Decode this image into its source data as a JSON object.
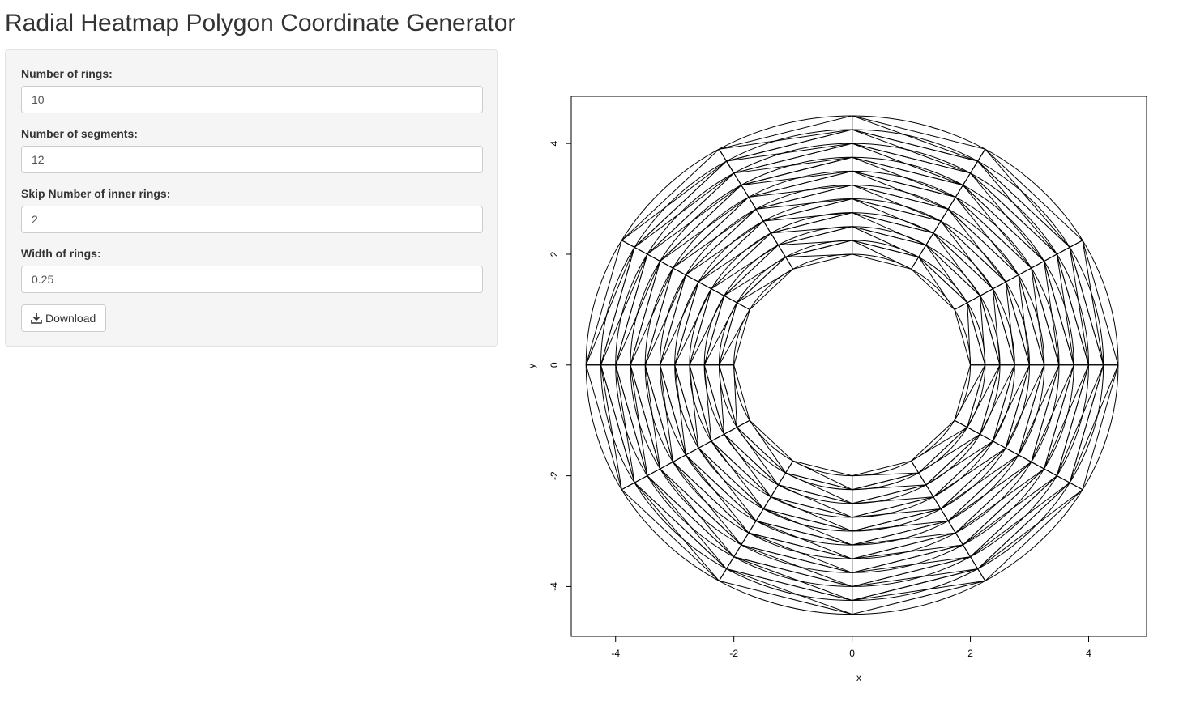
{
  "app": {
    "title": "Radial Heatmap Polygon Coordinate Generator"
  },
  "sidebar": {
    "fields": [
      {
        "label": "Number of rings:",
        "value": "10"
      },
      {
        "label": "Number of segments:",
        "value": "12"
      },
      {
        "label": "Skip Number of inner rings:",
        "value": "2"
      },
      {
        "label": "Width of rings:",
        "value": "0.25"
      }
    ],
    "download_label": "Download",
    "download_icon": "download-icon"
  },
  "chart_data": {
    "type": "line",
    "description_of_geometry": "polygon mesh",
    "rings": 10,
    "segments": 12,
    "skip_inner_rings": 2,
    "ring_width": 0.25,
    "inner_radius": 2,
    "outer_radius": 4.5,
    "xlabel": "x",
    "ylabel": "y",
    "xlim": [
      -4.75,
      4.98
    ],
    "ylim": [
      -4.9,
      4.85
    ],
    "x_ticks": [
      "-4",
      "-2",
      "0",
      "2",
      "4"
    ],
    "y_ticks": [
      "-4",
      "-2",
      "0",
      "2",
      "4"
    ],
    "line_color": "#000000",
    "grid": false
  }
}
